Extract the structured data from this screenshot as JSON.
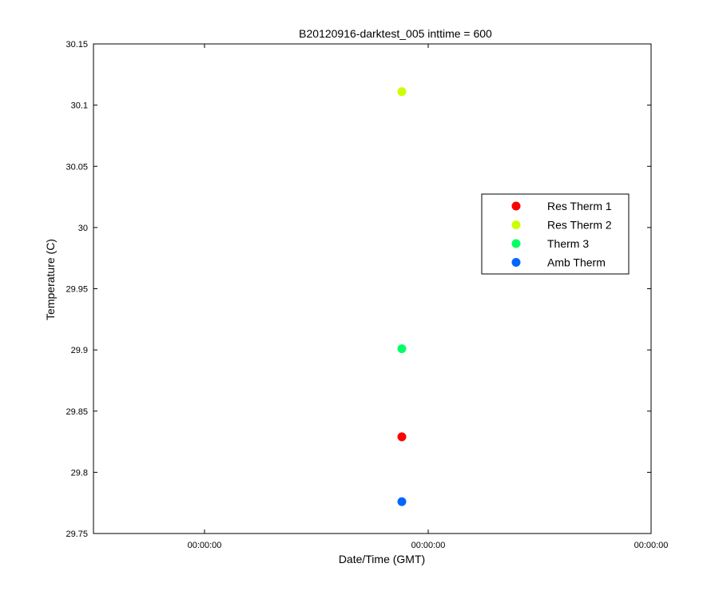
{
  "chart_data": {
    "type": "scatter",
    "title": "B20120916-darktest_005 inttime = 600",
    "xlabel": "Date/Time (GMT)",
    "ylabel": "Temperature (C)",
    "ylim": [
      29.75,
      30.15
    ],
    "yticks": [
      29.75,
      29.8,
      29.85,
      29.9,
      29.95,
      30,
      30.05,
      30.1,
      30.15
    ],
    "ytick_labels": [
      "29.75",
      "29.8",
      "29.85",
      "29.9",
      "29.95",
      "30",
      "30.05",
      "30.1",
      "30.15"
    ],
    "xtick_labels": [
      "00:00:00",
      "00:00:00",
      "00:00:00"
    ],
    "grid": false,
    "legend_position": "right",
    "series": [
      {
        "name": "Res Therm 1",
        "color": "#ff0000",
        "x": [
          "00:00:00"
        ],
        "y": [
          29.829
        ]
      },
      {
        "name": "Res Therm 2",
        "color": "#ccff00",
        "x": [
          "00:00:00"
        ],
        "y": [
          30.111
        ]
      },
      {
        "name": "Therm 3",
        "color": "#00ff66",
        "x": [
          "00:00:00"
        ],
        "y": [
          29.901
        ]
      },
      {
        "name": "Amb Therm",
        "color": "#0066ff",
        "x": [
          "00:00:00"
        ],
        "y": [
          29.776
        ]
      }
    ]
  }
}
